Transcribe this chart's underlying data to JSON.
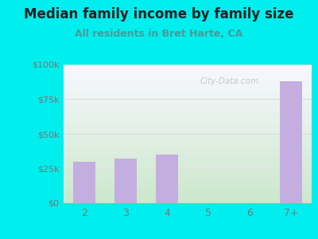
{
  "title": "Median family income by family size",
  "subtitle": "All residents in Bret Harte, CA",
  "categories": [
    "2",
    "3",
    "4",
    "5",
    "6",
    "7+"
  ],
  "values": [
    30000,
    32000,
    35000,
    0,
    0,
    88000
  ],
  "bar_color": "#c4aee0",
  "background_color": "#00EEEE",
  "plot_bg_top": "#f8f8ff",
  "plot_bg_bottom": "#cce8cc",
  "title_color": "#222222",
  "subtitle_color": "#4a9a9a",
  "tick_color": "#777777",
  "grid_color": "#dddddd",
  "ylim": [
    0,
    100000
  ],
  "yticks": [
    0,
    25000,
    50000,
    75000,
    100000
  ],
  "ytick_labels": [
    "$0",
    "$25k",
    "$50k",
    "$75k",
    "$100k"
  ],
  "watermark": "City-Data.com",
  "title_fontsize": 12,
  "subtitle_fontsize": 9
}
